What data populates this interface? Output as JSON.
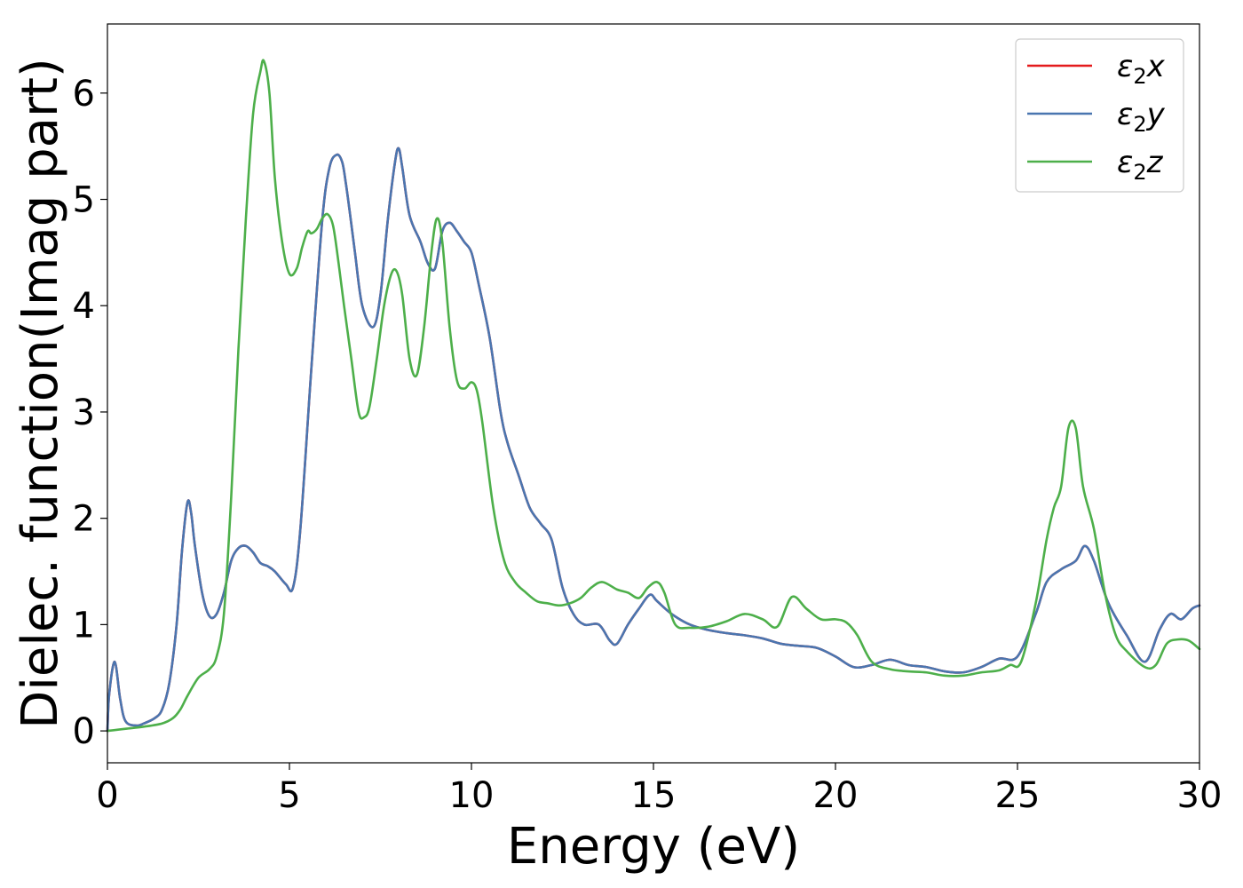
{
  "chart_data": {
    "type": "line",
    "title": "",
    "xlabel": "Energy (eV)",
    "ylabel": "Dielec. function(Imag part)",
    "xlim": [
      0,
      30
    ],
    "ylim": [
      -0.3,
      6.65
    ],
    "xticks": [
      0,
      5,
      10,
      15,
      20,
      25,
      30
    ],
    "yticks": [
      0,
      1,
      2,
      3,
      4,
      5,
      6
    ],
    "xtick_labels": [
      "0",
      "5",
      "10",
      "15",
      "20",
      "25",
      "30"
    ],
    "ytick_labels": [
      "0",
      "1",
      "2",
      "3",
      "4",
      "5",
      "6"
    ],
    "grid": false,
    "legend_position": "top-right",
    "series": [
      {
        "name": "ε2x",
        "label_main": "ε",
        "label_sub": "2",
        "label_tail": "x",
        "color": "#e41a1c",
        "x": [
          0,
          0.05,
          0.2,
          0.35,
          0.5,
          0.8,
          1.0,
          1.3,
          1.5,
          1.7,
          1.9,
          2.05,
          2.2,
          2.3,
          2.4,
          2.6,
          2.8,
          3.0,
          3.2,
          3.4,
          3.6,
          3.8,
          4.0,
          4.2,
          4.4,
          4.6,
          4.9,
          5.1,
          5.3,
          5.6,
          5.9,
          6.1,
          6.3,
          6.45,
          6.55,
          6.65,
          6.8,
          7.0,
          7.3,
          7.5,
          7.7,
          7.9,
          8.0,
          8.1,
          8.3,
          8.6,
          8.8,
          9.0,
          9.2,
          9.4,
          9.6,
          9.8,
          10.0,
          10.2,
          10.5,
          10.8,
          11.0,
          11.3,
          11.6,
          11.9,
          12.2,
          12.5,
          12.8,
          13.1,
          13.5,
          13.8,
          14.0,
          14.3,
          14.6,
          14.9,
          15.1,
          15.5,
          16.0,
          16.5,
          17.0,
          17.5,
          18.0,
          18.5,
          19.0,
          19.5,
          20.0,
          20.5,
          21.0,
          21.5,
          22.0,
          22.5,
          23.0,
          23.5,
          24.0,
          24.5,
          25.0,
          25.5,
          25.8,
          26.2,
          26.6,
          26.85,
          27.1,
          27.5,
          28.0,
          28.5,
          28.9,
          29.2,
          29.5,
          29.8,
          30.0
        ],
        "values": [
          0.0,
          0.35,
          0.65,
          0.3,
          0.09,
          0.05,
          0.07,
          0.12,
          0.2,
          0.45,
          1.0,
          1.7,
          2.15,
          2.05,
          1.75,
          1.3,
          1.08,
          1.1,
          1.3,
          1.6,
          1.72,
          1.74,
          1.68,
          1.58,
          1.55,
          1.5,
          1.38,
          1.35,
          1.9,
          3.4,
          4.8,
          5.3,
          5.42,
          5.35,
          5.15,
          4.9,
          4.5,
          4.0,
          3.8,
          4.1,
          4.8,
          5.35,
          5.48,
          5.3,
          4.85,
          4.6,
          4.4,
          4.35,
          4.7,
          4.78,
          4.7,
          4.6,
          4.5,
          4.2,
          3.7,
          3.0,
          2.7,
          2.4,
          2.1,
          1.95,
          1.8,
          1.35,
          1.1,
          1.0,
          1.0,
          0.85,
          0.82,
          1.0,
          1.15,
          1.28,
          1.22,
          1.1,
          1.0,
          0.95,
          0.92,
          0.9,
          0.87,
          0.82,
          0.8,
          0.78,
          0.7,
          0.6,
          0.62,
          0.67,
          0.62,
          0.6,
          0.56,
          0.55,
          0.6,
          0.68,
          0.7,
          1.1,
          1.4,
          1.52,
          1.6,
          1.74,
          1.6,
          1.2,
          0.9,
          0.65,
          0.95,
          1.1,
          1.05,
          1.15,
          1.18
        ]
      },
      {
        "name": "ε2y",
        "label_main": "ε",
        "label_sub": "2",
        "label_tail": "y",
        "color": "#4a76b0",
        "x": [
          0,
          0.05,
          0.2,
          0.35,
          0.5,
          0.8,
          1.0,
          1.3,
          1.5,
          1.7,
          1.9,
          2.05,
          2.2,
          2.3,
          2.4,
          2.6,
          2.8,
          3.0,
          3.2,
          3.4,
          3.6,
          3.8,
          4.0,
          4.2,
          4.4,
          4.6,
          4.9,
          5.1,
          5.3,
          5.6,
          5.9,
          6.1,
          6.3,
          6.45,
          6.55,
          6.65,
          6.8,
          7.0,
          7.3,
          7.5,
          7.7,
          7.9,
          8.0,
          8.1,
          8.3,
          8.6,
          8.8,
          9.0,
          9.2,
          9.4,
          9.6,
          9.8,
          10.0,
          10.2,
          10.5,
          10.8,
          11.0,
          11.3,
          11.6,
          11.9,
          12.2,
          12.5,
          12.8,
          13.1,
          13.5,
          13.8,
          14.0,
          14.3,
          14.6,
          14.9,
          15.1,
          15.5,
          16.0,
          16.5,
          17.0,
          17.5,
          18.0,
          18.5,
          19.0,
          19.5,
          20.0,
          20.5,
          21.0,
          21.5,
          22.0,
          22.5,
          23.0,
          23.5,
          24.0,
          24.5,
          25.0,
          25.5,
          25.8,
          26.2,
          26.6,
          26.85,
          27.1,
          27.5,
          28.0,
          28.5,
          28.9,
          29.2,
          29.5,
          29.8,
          30.0
        ],
        "values": [
          0.0,
          0.35,
          0.65,
          0.3,
          0.09,
          0.05,
          0.07,
          0.12,
          0.2,
          0.45,
          1.0,
          1.7,
          2.15,
          2.05,
          1.75,
          1.3,
          1.08,
          1.1,
          1.3,
          1.6,
          1.72,
          1.74,
          1.68,
          1.58,
          1.55,
          1.5,
          1.38,
          1.35,
          1.9,
          3.4,
          4.8,
          5.3,
          5.42,
          5.35,
          5.15,
          4.9,
          4.5,
          4.0,
          3.8,
          4.1,
          4.8,
          5.35,
          5.48,
          5.3,
          4.85,
          4.6,
          4.4,
          4.35,
          4.7,
          4.78,
          4.7,
          4.6,
          4.5,
          4.2,
          3.7,
          3.0,
          2.7,
          2.4,
          2.1,
          1.95,
          1.8,
          1.35,
          1.1,
          1.0,
          1.0,
          0.85,
          0.82,
          1.0,
          1.15,
          1.28,
          1.22,
          1.1,
          1.0,
          0.95,
          0.92,
          0.9,
          0.87,
          0.82,
          0.8,
          0.78,
          0.7,
          0.6,
          0.62,
          0.67,
          0.62,
          0.6,
          0.56,
          0.55,
          0.6,
          0.68,
          0.7,
          1.1,
          1.4,
          1.52,
          1.6,
          1.74,
          1.6,
          1.2,
          0.9,
          0.65,
          0.95,
          1.1,
          1.05,
          1.15,
          1.18
        ]
      },
      {
        "name": "ε2z",
        "label_main": "ε",
        "label_sub": "2",
        "label_tail": "z",
        "color": "#4daf4a",
        "x": [
          0,
          0.5,
          1.0,
          1.5,
          1.8,
          2.0,
          2.2,
          2.5,
          2.8,
          3.0,
          3.2,
          3.4,
          3.6,
          3.8,
          4.0,
          4.2,
          4.3,
          4.45,
          4.6,
          4.8,
          5.0,
          5.2,
          5.35,
          5.5,
          5.6,
          5.75,
          5.9,
          6.05,
          6.2,
          6.35,
          6.5,
          6.7,
          6.9,
          7.05,
          7.2,
          7.4,
          7.6,
          7.8,
          7.95,
          8.1,
          8.3,
          8.5,
          8.7,
          8.9,
          9.05,
          9.2,
          9.4,
          9.6,
          9.8,
          10.0,
          10.15,
          10.3,
          10.6,
          10.9,
          11.2,
          11.5,
          11.8,
          12.1,
          12.4,
          12.7,
          13.0,
          13.3,
          13.6,
          14.0,
          14.3,
          14.6,
          14.85,
          15.1,
          15.3,
          15.6,
          16.0,
          16.5,
          17.0,
          17.5,
          18.0,
          18.4,
          18.8,
          19.2,
          19.6,
          20.0,
          20.3,
          20.6,
          21.0,
          21.5,
          22.0,
          22.5,
          23.0,
          23.5,
          24.0,
          24.5,
          24.8,
          25.1,
          25.5,
          25.8,
          26.0,
          26.2,
          26.4,
          26.6,
          26.8,
          27.1,
          27.4,
          27.7,
          28.0,
          28.5,
          28.8,
          29.1,
          29.4,
          29.7,
          30.0
        ],
        "values": [
          0.0,
          0.02,
          0.04,
          0.07,
          0.12,
          0.2,
          0.33,
          0.5,
          0.58,
          0.7,
          1.1,
          2.2,
          3.6,
          4.8,
          5.8,
          6.2,
          6.3,
          6.0,
          5.2,
          4.6,
          4.3,
          4.35,
          4.55,
          4.7,
          4.68,
          4.72,
          4.82,
          4.86,
          4.75,
          4.4,
          4.0,
          3.5,
          3.0,
          2.95,
          3.05,
          3.5,
          4.0,
          4.3,
          4.32,
          4.1,
          3.5,
          3.35,
          3.8,
          4.5,
          4.82,
          4.6,
          3.8,
          3.3,
          3.22,
          3.28,
          3.2,
          2.9,
          2.1,
          1.6,
          1.4,
          1.3,
          1.22,
          1.2,
          1.18,
          1.2,
          1.25,
          1.35,
          1.4,
          1.33,
          1.3,
          1.25,
          1.35,
          1.4,
          1.3,
          1.0,
          0.97,
          0.98,
          1.03,
          1.1,
          1.05,
          0.98,
          1.26,
          1.15,
          1.05,
          1.05,
          1.02,
          0.9,
          0.65,
          0.58,
          0.56,
          0.55,
          0.52,
          0.52,
          0.55,
          0.57,
          0.62,
          0.65,
          1.2,
          1.8,
          2.1,
          2.3,
          2.85,
          2.85,
          2.3,
          1.9,
          1.3,
          0.9,
          0.75,
          0.6,
          0.62,
          0.82,
          0.86,
          0.85,
          0.77
        ]
      }
    ]
  }
}
